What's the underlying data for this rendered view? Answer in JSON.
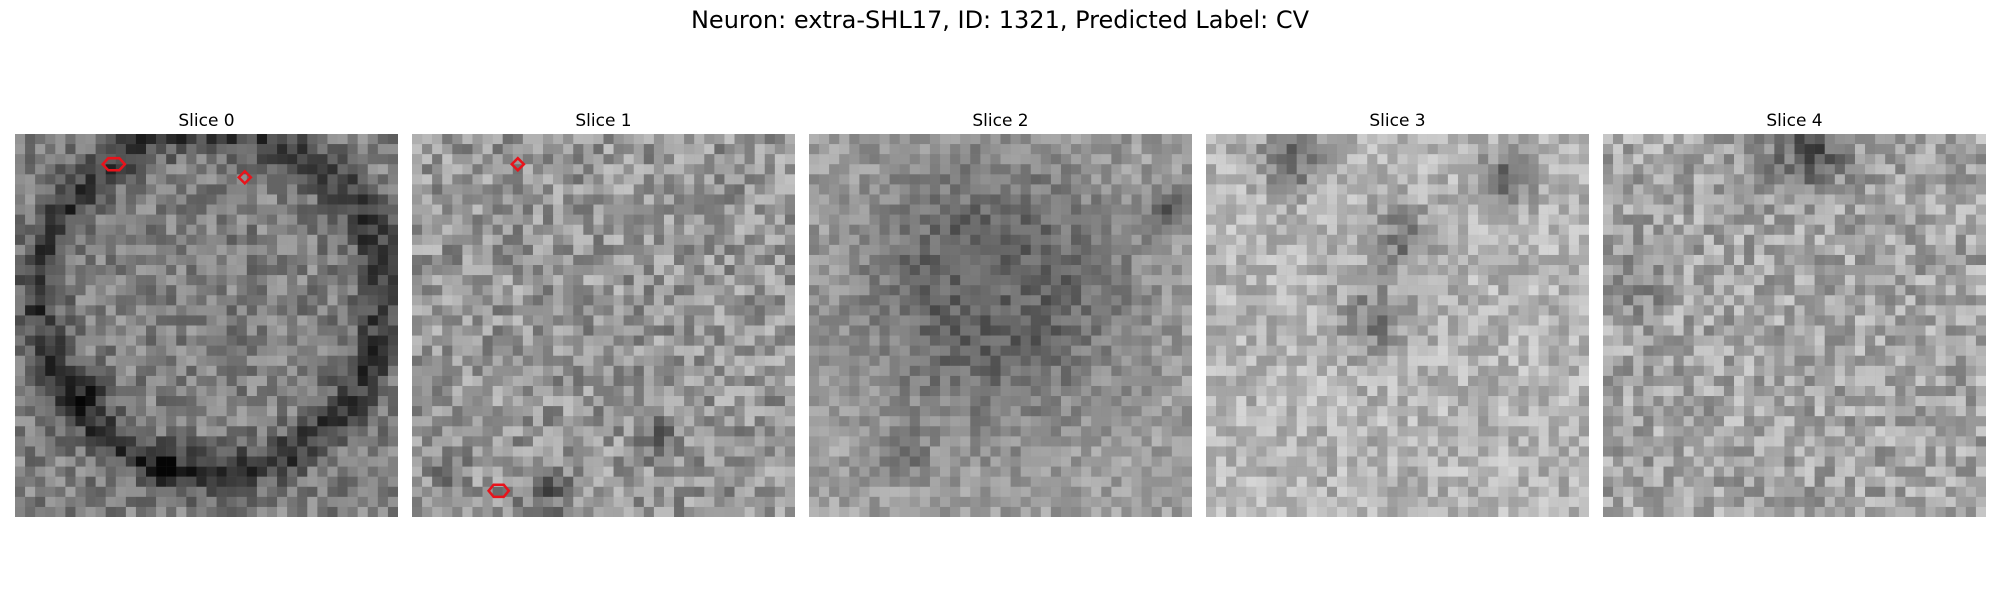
{
  "figure": {
    "title": "Neuron: extra-SHL17, ID: 1321, Predicted Label: CV",
    "colormap": "gray",
    "marker_color": "#e8131b"
  },
  "panels": [
    {
      "title": "Slice 0",
      "base": 128,
      "contrast": 38,
      "markers": [
        {
          "gx": 9.8,
          "gy": 3.0,
          "rx": 1.1,
          "ry": 0.6,
          "shape": "hex"
        },
        {
          "gx": 22.8,
          "gy": 4.3,
          "rx": 0.6,
          "ry": 0.6,
          "shape": "diamond"
        }
      ]
    },
    {
      "title": "Slice 1",
      "base": 150,
      "contrast": 44,
      "markers": [
        {
          "gx": 10.5,
          "gy": 3.0,
          "rx": 0.6,
          "ry": 0.6,
          "shape": "diamond"
        },
        {
          "gx": 8.6,
          "gy": 35.4,
          "rx": 1.0,
          "ry": 0.6,
          "shape": "hex"
        }
      ]
    },
    {
      "title": "Slice 2",
      "base": 160,
      "contrast": 28,
      "markers": []
    },
    {
      "title": "Slice 3",
      "base": 180,
      "contrast": 34,
      "markers": []
    },
    {
      "title": "Slice 4",
      "base": 165,
      "contrast": 42,
      "markers": []
    }
  ]
}
